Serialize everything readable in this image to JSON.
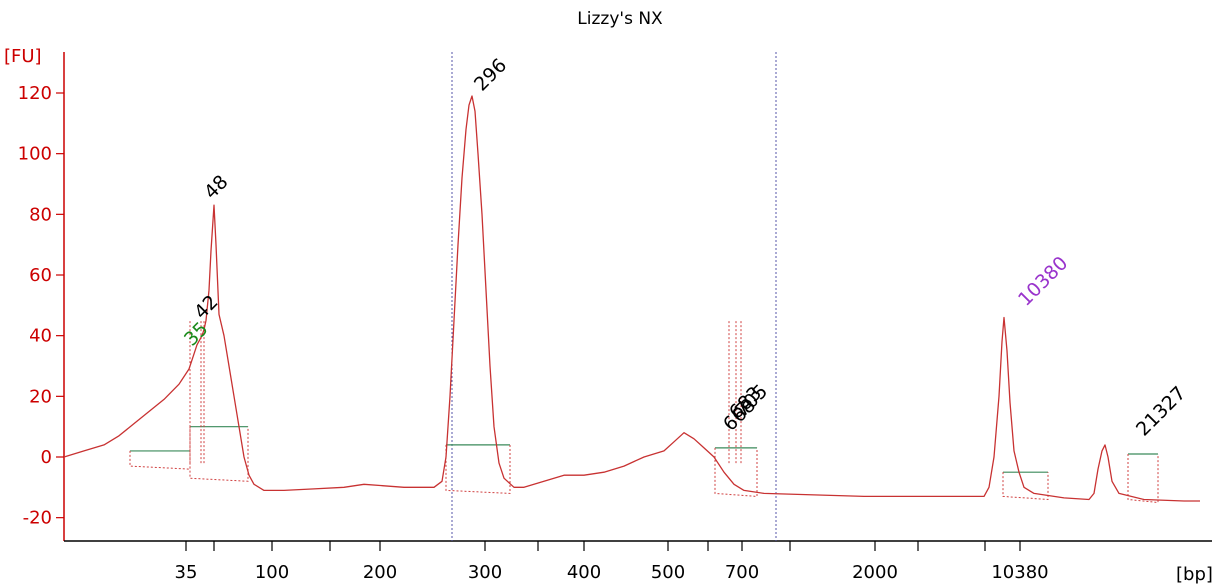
{
  "chart_data": {
    "type": "line",
    "title": "Lizzy's NX",
    "ylabel": "[FU]",
    "xlabel": "[bp]",
    "ylim": [
      -28,
      133
    ],
    "y_ticks": [
      -20,
      0,
      20,
      40,
      60,
      80,
      100,
      120
    ],
    "x_ticks": [
      "35",
      "100",
      "200",
      "300",
      "400",
      "500",
      "700",
      "2000",
      "10380"
    ],
    "peaks": [
      {
        "label": "35",
        "value": 38,
        "color": "#1a8a1a",
        "note": "lower marker"
      },
      {
        "label": "42",
        "value": 44,
        "color": "#000000"
      },
      {
        "label": "48",
        "value": 83,
        "color": "#000000"
      },
      {
        "label": "296",
        "value": 119,
        "color": "#000000"
      },
      {
        "label": "668",
        "value": 9,
        "color": "#000000"
      },
      {
        "label": "683",
        "value": 10,
        "color": "#000000"
      },
      {
        "label": "705",
        "value": 9,
        "color": "#000000"
      },
      {
        "label": "10380",
        "value": 46,
        "color": "#9933cc",
        "note": "upper marker"
      },
      {
        "label": "21327",
        "value": 4,
        "color": "#000000"
      }
    ],
    "series": [
      {
        "color": "#c83232",
        "points": [
          [
            0,
            0
          ],
          [
            20,
            2
          ],
          [
            40,
            4
          ],
          [
            55,
            7
          ],
          [
            70,
            11
          ],
          [
            85,
            15
          ],
          [
            100,
            19
          ],
          [
            115,
            24
          ],
          [
            125,
            29
          ],
          [
            130,
            34
          ],
          [
            133,
            37
          ],
          [
            138,
            40
          ],
          [
            140,
            42
          ],
          [
            142,
            45
          ],
          [
            145,
            55
          ],
          [
            147,
            68
          ],
          [
            149,
            78
          ],
          [
            150,
            83
          ],
          [
            152,
            70
          ],
          [
            155,
            47
          ],
          [
            160,
            40
          ],
          [
            165,
            30
          ],
          [
            170,
            20
          ],
          [
            175,
            10
          ],
          [
            180,
            0
          ],
          [
            185,
            -6
          ],
          [
            190,
            -9
          ],
          [
            200,
            -11
          ],
          [
            220,
            -11
          ],
          [
            250,
            -10.5
          ],
          [
            280,
            -10
          ],
          [
            300,
            -9
          ],
          [
            320,
            -9.5
          ],
          [
            340,
            -10
          ],
          [
            360,
            -10
          ],
          [
            370,
            -10
          ],
          [
            378,
            -8
          ],
          [
            382,
            0
          ],
          [
            386,
            20
          ],
          [
            390,
            45
          ],
          [
            394,
            70
          ],
          [
            398,
            92
          ],
          [
            402,
            108
          ],
          [
            405,
            116
          ],
          [
            408,
            119
          ],
          [
            411,
            114
          ],
          [
            414,
            100
          ],
          [
            418,
            80
          ],
          [
            422,
            55
          ],
          [
            426,
            30
          ],
          [
            430,
            10
          ],
          [
            435,
            -2
          ],
          [
            440,
            -7
          ],
          [
            450,
            -10
          ],
          [
            460,
            -10
          ],
          [
            480,
            -8
          ],
          [
            500,
            -6
          ],
          [
            520,
            -6
          ],
          [
            540,
            -5
          ],
          [
            560,
            -3
          ],
          [
            580,
            0
          ],
          [
            600,
            2
          ],
          [
            610,
            5
          ],
          [
            620,
            8
          ],
          [
            630,
            6
          ],
          [
            640,
            3
          ],
          [
            650,
            0
          ],
          [
            660,
            -5
          ],
          [
            670,
            -9
          ],
          [
            680,
            -11
          ],
          [
            700,
            -12
          ],
          [
            750,
            -12.5
          ],
          [
            800,
            -13
          ],
          [
            850,
            -13
          ],
          [
            900,
            -13
          ],
          [
            920,
            -13
          ],
          [
            925,
            -10
          ],
          [
            930,
            0
          ],
          [
            935,
            20
          ],
          [
            938,
            38
          ],
          [
            940,
            46
          ],
          [
            943,
            35
          ],
          [
            946,
            18
          ],
          [
            950,
            2
          ],
          [
            955,
            -5
          ],
          [
            960,
            -10
          ],
          [
            970,
            -12
          ],
          [
            1000,
            -13.5
          ],
          [
            1025,
            -14
          ],
          [
            1030,
            -12
          ],
          [
            1034,
            -4
          ],
          [
            1038,
            2
          ],
          [
            1041,
            4
          ],
          [
            1044,
            0
          ],
          [
            1048,
            -8
          ],
          [
            1055,
            -12
          ],
          [
            1080,
            -14
          ],
          [
            1120,
            -14.5
          ],
          [
            1136,
            -14.5
          ]
        ]
      }
    ]
  }
}
